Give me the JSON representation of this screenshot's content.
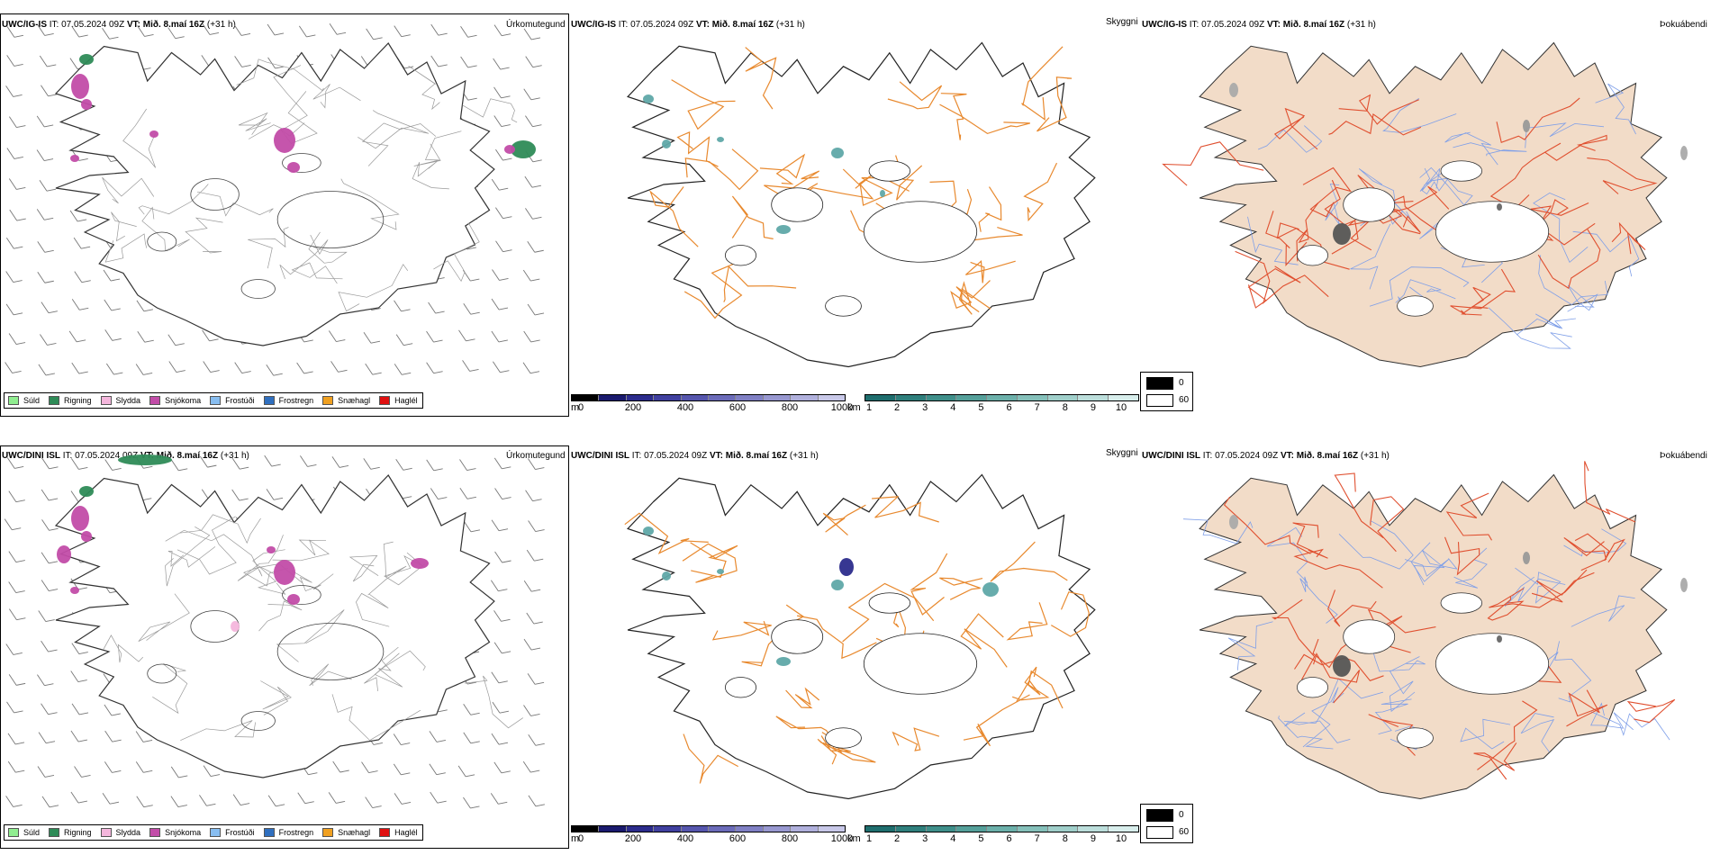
{
  "rows": [
    {
      "model": "UWC/IG-IS",
      "it_label": "IT:",
      "it_value": "07.05.2024 09Z",
      "vt_label": "VT:",
      "vt_value": "Mið. 8.maí 16Z",
      "lead": "(+31 h)",
      "panel_titles": [
        "Úrkomutegund",
        "Skyggni",
        "Þokuábendi"
      ]
    },
    {
      "model": "UWC/DINI ISL",
      "it_label": "IT:",
      "it_value": "07.05.2024 09Z",
      "vt_label": "VT:",
      "vt_value": "Mið. 8.maí 16Z",
      "lead": "(+31 h)",
      "panel_titles": [
        "Úrkomutegund",
        "Skyggni",
        "Þokuábendi"
      ]
    }
  ],
  "precip_legend": [
    {
      "label": "Súld",
      "color": "#90ee90"
    },
    {
      "label": "Rigning",
      "color": "#2e8b57"
    },
    {
      "label": "Slydda",
      "color": "#f4b6dc"
    },
    {
      "label": "Snjókoma",
      "color": "#c24ca8"
    },
    {
      "label": "Frostúði",
      "color": "#87bdf0"
    },
    {
      "label": "Frostregn",
      "color": "#2f6fbf"
    },
    {
      "label": "Snæhagl",
      "color": "#f0a020"
    },
    {
      "label": "Haglél",
      "color": "#e01010"
    }
  ],
  "cloud_base_scale": {
    "unit": "m",
    "ticks": [
      "0",
      "200",
      "400",
      "600",
      "800",
      "1000"
    ],
    "colors": [
      "#000000",
      "#1a1a6e",
      "#2c2c8c",
      "#40409f",
      "#5656ad",
      "#6b6bb9",
      "#8080c4",
      "#9898d0",
      "#b0b0dc",
      "#c8c8e8"
    ]
  },
  "visibility_scale": {
    "unit": "km",
    "ticks": [
      "1",
      "2",
      "3",
      "4",
      "5",
      "6",
      "7",
      "8",
      "9",
      "10"
    ],
    "colors": [
      "#1f6e6e",
      "#2f7f7c",
      "#3f8f8a",
      "#55a09a",
      "#6cb0aa",
      "#85c0ba",
      "#a0cfca",
      "#bcdedb",
      "#d8eeec"
    ]
  },
  "fog_legend": [
    {
      "label": "0",
      "color": "#000000"
    },
    {
      "label": "60",
      "color": "#ffffff"
    }
  ],
  "colors": {
    "roads_orange": "#e8892e",
    "fog_land": "#f2dcc8",
    "fog_roads": "#e05030",
    "fog_rivers": "#7f9fe8",
    "snow": "#c24ca8",
    "rain": "#2e8b57",
    "cloud_teal": "#5fa8a8"
  },
  "icons": [
    "iceland-outline",
    "wind-barb",
    "road-network",
    "river-network",
    "glacier"
  ]
}
